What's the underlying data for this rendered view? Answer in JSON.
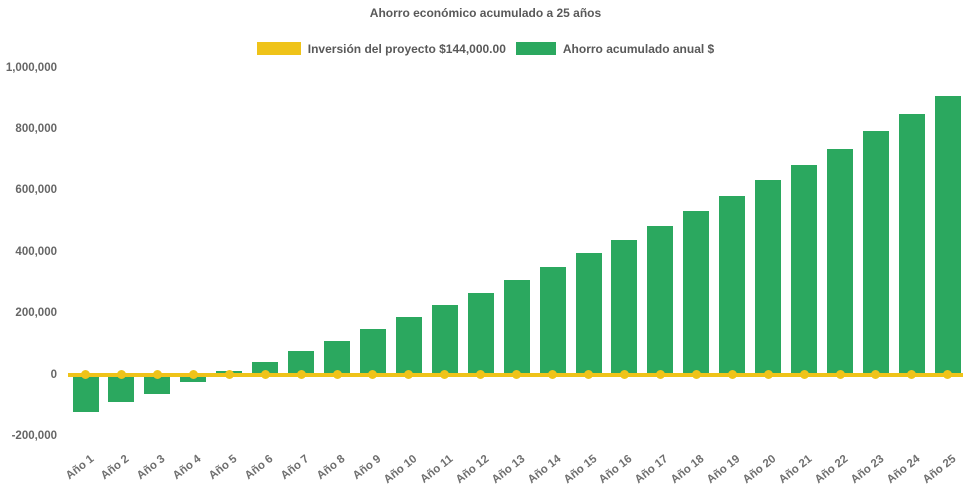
{
  "title": "Ahorro económico acumulado a 25 años",
  "colors": {
    "background": "#FFFFFF",
    "investment_line": "#EFC319",
    "savings_bar": "#2BA85F",
    "title_text": "#595959",
    "axis_text": "#666666"
  },
  "chart_data": {
    "type": "bar",
    "title": "Ahorro económico acumulado a 25 años",
    "xlabel": "",
    "ylabel": "",
    "grid": false,
    "legend_position": "top",
    "x_tick_rotation_deg": 38,
    "ylim": [
      -200000,
      1000000
    ],
    "ytick_step": 200000,
    "yticks": [
      {
        "value": 1000000,
        "label": "1,000,000"
      },
      {
        "value": 800000,
        "label": "800,000"
      },
      {
        "value": 600000,
        "label": "600,000"
      },
      {
        "value": 400000,
        "label": "400,000"
      },
      {
        "value": 200000,
        "label": "200,000"
      },
      {
        "value": 0,
        "label": "0"
      },
      {
        "value": -200000,
        "label": "-200,000"
      }
    ],
    "categories": [
      "Año 1",
      "Año 2",
      "Año 3",
      "Año 4",
      "Año 5",
      "Año 6",
      "Año 7",
      "Año 8",
      "Año 9",
      "Año 10",
      "Año 11",
      "Año 12",
      "Año 13",
      "Año 14",
      "Año 15",
      "Año 16",
      "Año 17",
      "Año 18",
      "Año 19",
      "Año 20",
      "Año 21",
      "Año 22",
      "Año 23",
      "Año 24",
      "Año 25"
    ],
    "series": [
      {
        "name": "Inversión del proyecto $144,000.00",
        "type": "line",
        "color": "#EFC319",
        "marker": "circle",
        "values": [
          0,
          0,
          0,
          0,
          0,
          0,
          0,
          0,
          0,
          0,
          0,
          0,
          0,
          0,
          0,
          0,
          0,
          0,
          0,
          0,
          0,
          0,
          0,
          0,
          0
        ]
      },
      {
        "name": "Ahorro acumulado anual $",
        "type": "bar",
        "color": "#2BA85F",
        "values": [
          -122000,
          -90000,
          -62000,
          -25000,
          12000,
          40000,
          77000,
          108000,
          148000,
          186000,
          225000,
          266000,
          308000,
          349000,
          396000,
          438000,
          483000,
          532000,
          580000,
          632000,
          682000,
          735000,
          792000,
          849000,
          908000
        ]
      }
    ]
  }
}
